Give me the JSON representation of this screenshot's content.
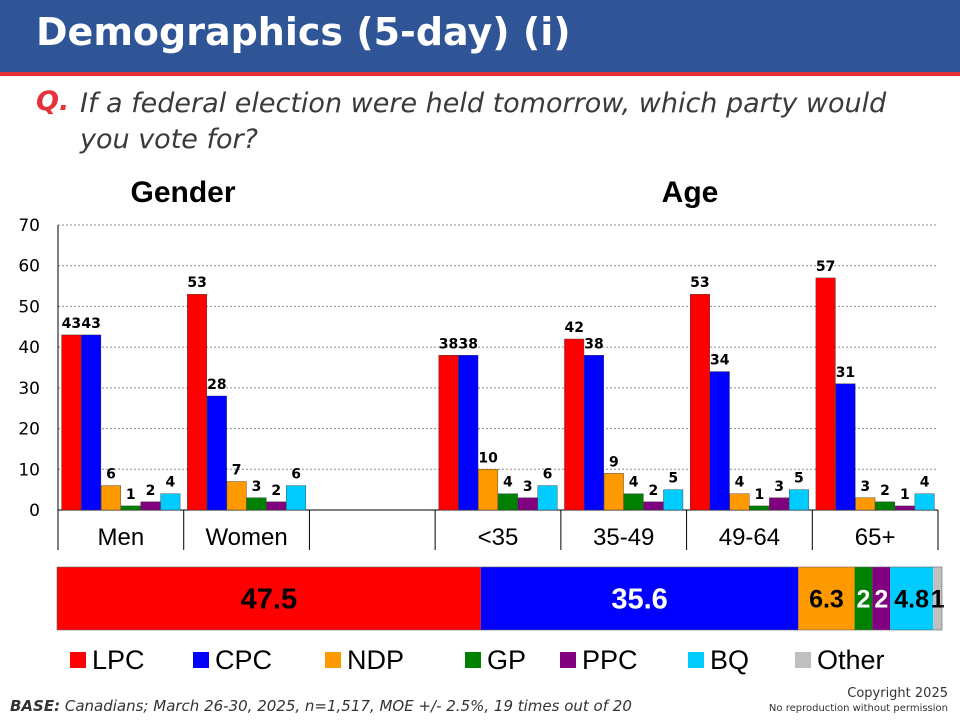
{
  "header": {
    "title": "Demographics (5-day) (i)"
  },
  "question": {
    "label": "Q.",
    "text": "If a federal election were held tomorrow, which party would you vote for?"
  },
  "colors": {
    "LPC": "#FF0000",
    "CPC": "#0000FF",
    "NDP": "#FF9900",
    "GP": "#008000",
    "PPC": "#800080",
    "BQ": "#00CCFF",
    "Other": "#C0C0C0",
    "header_bg": "#2F5597",
    "accent": "#E8303A"
  },
  "chart_data": [
    {
      "type": "bar",
      "group_labels": [
        "Gender",
        "Age"
      ],
      "categories": [
        "Men",
        "Women",
        "",
        "<35",
        "35-49",
        "49-64",
        "65+"
      ],
      "ylim": [
        0,
        70
      ],
      "yticks": [
        0,
        10,
        20,
        30,
        40,
        50,
        60,
        70
      ],
      "grid": true,
      "series": [
        {
          "name": "LPC",
          "values": [
            43,
            53,
            null,
            38,
            42,
            53,
            57
          ]
        },
        {
          "name": "CPC",
          "values": [
            43,
            28,
            null,
            38,
            38,
            34,
            31
          ]
        },
        {
          "name": "NDP",
          "values": [
            6,
            7,
            null,
            10,
            9,
            4,
            3
          ]
        },
        {
          "name": "GP",
          "values": [
            1,
            3,
            null,
            4,
            4,
            1,
            2
          ]
        },
        {
          "name": "PPC",
          "values": [
            2,
            2,
            null,
            3,
            2,
            3,
            1
          ]
        },
        {
          "name": "BQ",
          "values": [
            4,
            6,
            null,
            6,
            5,
            5,
            4
          ]
        }
      ]
    },
    {
      "type": "bar",
      "stacked": true,
      "orientation": "horizontal",
      "series": [
        {
          "name": "LPC",
          "value": 47.5,
          "label": "47.5"
        },
        {
          "name": "CPC",
          "value": 35.6,
          "label": "35.6"
        },
        {
          "name": "NDP",
          "value": 6.3,
          "label": "6.3"
        },
        {
          "name": "GP",
          "value": 2,
          "label": "2"
        },
        {
          "name": "PPC",
          "value": 2,
          "label": "2"
        },
        {
          "name": "BQ",
          "value": 4.8,
          "label": "4.8"
        },
        {
          "name": "Other",
          "value": 1,
          "label": "1"
        }
      ],
      "legend": [
        "LPC",
        "CPC",
        "NDP",
        "GP",
        "PPC",
        "BQ",
        "Other"
      ],
      "legend_placement": "bottom"
    }
  ],
  "footer": {
    "base_label": "BASE:",
    "base_text": " Canadians; March 26-30, 2025, n=1,517, MOE +/- 2.5%, 19 times out of 20",
    "copyright": "Copyright 2025",
    "notice": "No reproduction without permission"
  }
}
